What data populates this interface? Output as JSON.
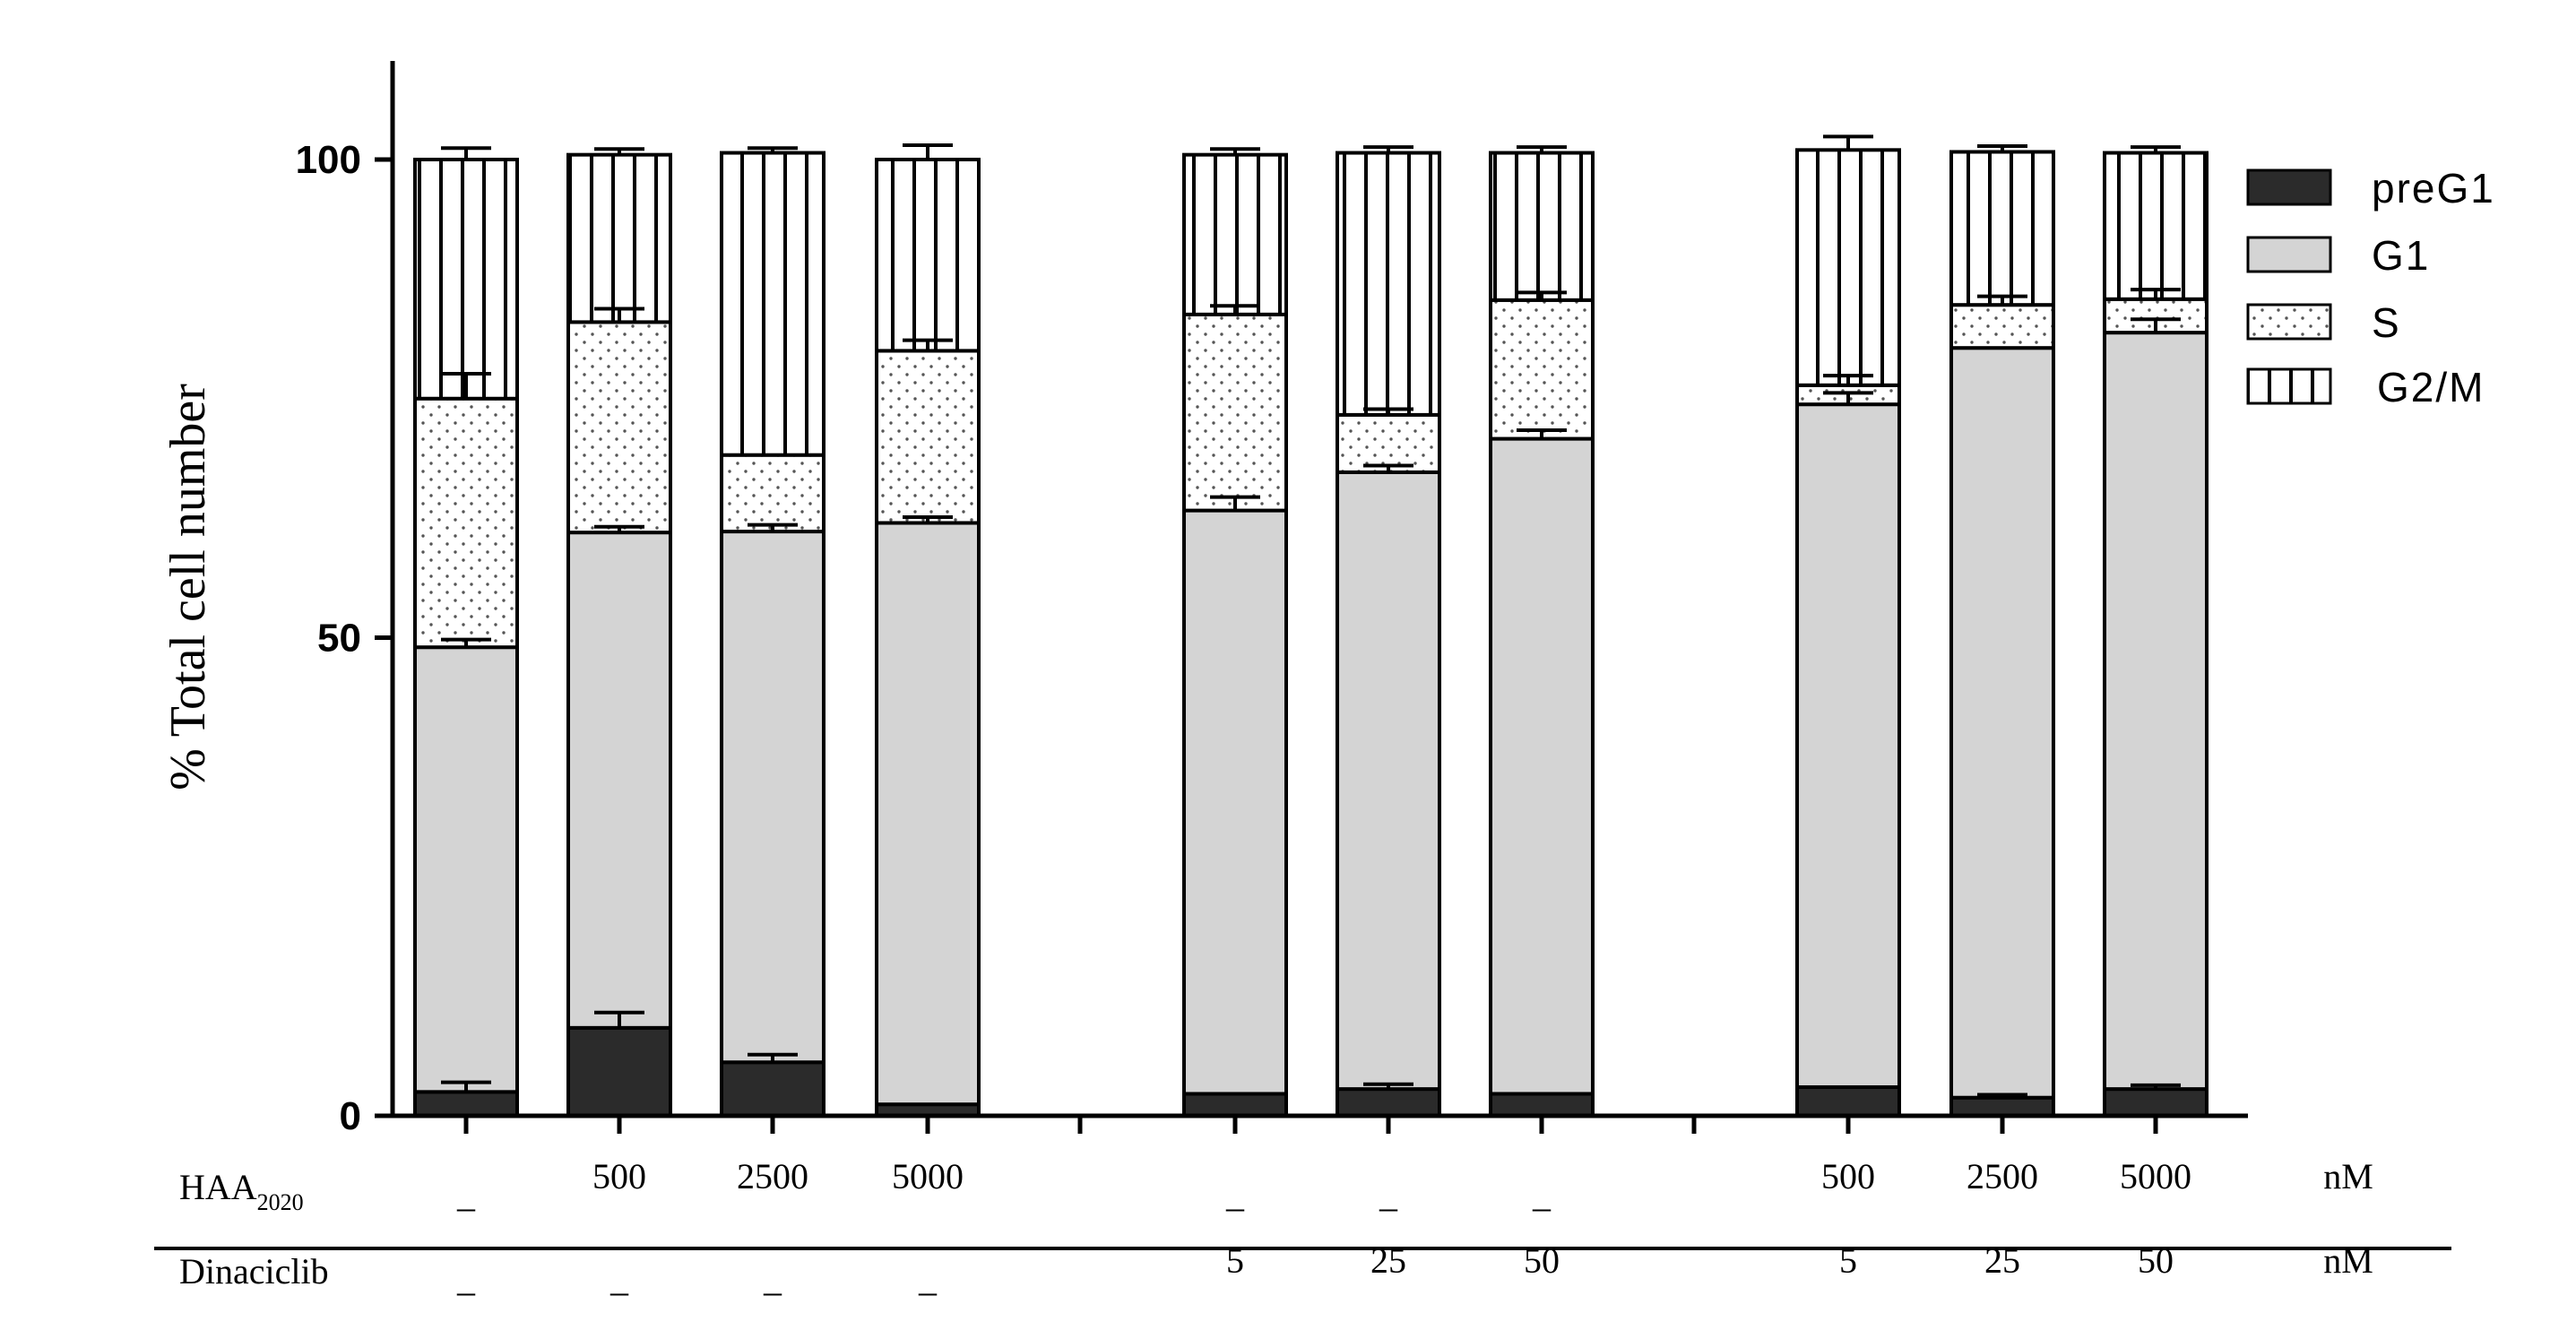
{
  "chart_data": {
    "type": "bar",
    "stacked": true,
    "ylabel": "% Total cell number",
    "ylim": [
      0,
      100
    ],
    "yticks": [
      0,
      50,
      100
    ],
    "grid": false,
    "legend_position": "right",
    "groups": [
      {
        "bars": [
          0,
          1,
          2,
          3
        ]
      },
      {
        "bars": [
          4,
          5,
          6
        ]
      },
      {
        "bars": [
          7,
          8,
          9
        ]
      }
    ],
    "series": [
      {
        "name": "preG1",
        "pattern": "solid-dark",
        "color": "#2b2b2b",
        "values": [
          2.5,
          9.2,
          5.6,
          1.2,
          2.3,
          2.8,
          2.3,
          3.0,
          1.9,
          2.8
        ],
        "errors": [
          1.0,
          1.6,
          0.8,
          0,
          0,
          0.5,
          0,
          0,
          0.3,
          0.4
        ]
      },
      {
        "name": "G1",
        "pattern": "solid-light",
        "color": "#d4d4d4",
        "values": [
          46.5,
          51.8,
          55.5,
          60.8,
          61.0,
          64.5,
          68.5,
          71.4,
          78.4,
          79.1
        ],
        "errors": [
          0.8,
          0.6,
          0.7,
          0.6,
          1.4,
          0.7,
          0.9,
          1.2,
          0,
          1.4
        ]
      },
      {
        "name": "S",
        "pattern": "dots",
        "color": "#ffffff",
        "values": [
          26.0,
          22.0,
          8.0,
          18.0,
          20.5,
          6.0,
          14.5,
          2.0,
          4.5,
          3.5
        ],
        "errors": [
          2.6,
          1.4,
          0,
          1.1,
          0.9,
          0.6,
          0.8,
          1.0,
          0.9,
          1.0
        ]
      },
      {
        "name": "G2/M",
        "pattern": "vertical-lines",
        "color": "#ffffff",
        "values": [
          25.0,
          17.5,
          31.6,
          20.0,
          16.7,
          27.4,
          15.4,
          24.6,
          16.0,
          15.3
        ],
        "errors": [
          1.2,
          0.6,
          0.5,
          1.5,
          0.6,
          0.6,
          0.6,
          1.4,
          0.6,
          0.6
        ]
      }
    ],
    "treatment_rows": [
      {
        "label": "HAA",
        "label_sub": "2020",
        "values": [
          "–",
          "500",
          "2500",
          "5000",
          "–",
          "–",
          "–",
          "500",
          "2500",
          "5000"
        ],
        "unit": "nM"
      },
      {
        "label": "Dinaciclib",
        "label_sub": "",
        "values": [
          "–",
          "–",
          "–",
          "–",
          "5",
          "25",
          "50",
          "5",
          "25",
          "50"
        ],
        "unit": "nM"
      }
    ]
  }
}
